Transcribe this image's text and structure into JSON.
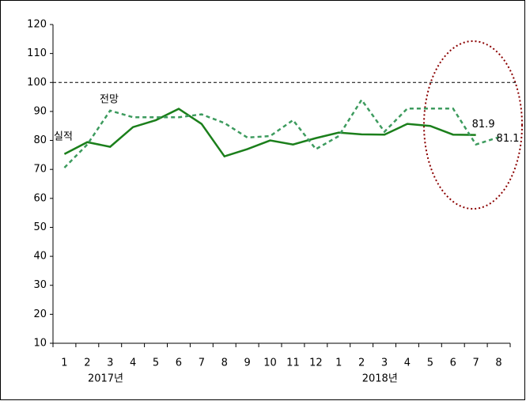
{
  "chart_data": {
    "type": "line",
    "categories": [
      "1",
      "2",
      "3",
      "4",
      "5",
      "6",
      "7",
      "8",
      "9",
      "10",
      "11",
      "12",
      "1",
      "2",
      "3",
      "4",
      "5",
      "6",
      "7",
      "8"
    ],
    "x_groups": [
      "2017년",
      "2018년"
    ],
    "series": [
      {
        "name": "실적",
        "color": "#1b7f1b",
        "dashed": false,
        "values": [
          75.3,
          79.4,
          77.8,
          84.6,
          87,
          90.9,
          85.7,
          74.5,
          77,
          80,
          78.6,
          80.8,
          82.7,
          82.1,
          82,
          85.7,
          85,
          82,
          81.9,
          null
        ]
      },
      {
        "name": "전망",
        "color": "#3d9b5e",
        "dashed": true,
        "values": [
          70.6,
          78.6,
          90.3,
          88,
          88,
          88,
          89,
          86,
          81,
          81.5,
          87,
          77,
          81.5,
          94,
          83,
          91,
          91,
          91,
          78.6,
          81.1
        ]
      }
    ],
    "reference_line": 100,
    "ylim": [
      10,
      120
    ],
    "yticks": [
      10,
      20,
      30,
      40,
      50,
      60,
      70,
      80,
      90,
      100,
      110,
      120
    ]
  }
}
